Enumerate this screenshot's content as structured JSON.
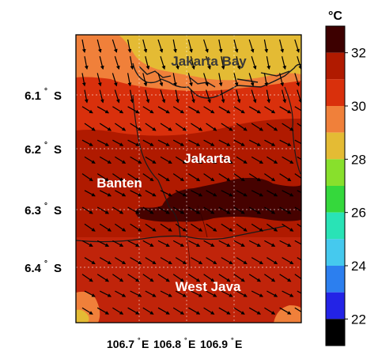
{
  "map": {
    "bay_label": "Jakarta Bay",
    "region_labels": [
      "Jakarta",
      "Banten",
      "West Java"
    ],
    "lat_labels": [
      "6.1",
      "6.2",
      "6.3",
      "6.4"
    ],
    "lat_suffix": "S",
    "lon_labels": [
      "106.7",
      "106.8",
      "106.9"
    ],
    "lon_suffix": "E",
    "degree_symbol": "°"
  },
  "colorbar": {
    "unit": "°C",
    "tick_labels": [
      "32",
      "30",
      "28",
      "26",
      "24",
      "22"
    ],
    "ticks": [
      32,
      30,
      28,
      26,
      24,
      22
    ],
    "range": [
      21,
      33
    ],
    "bands": [
      {
        "from": 32,
        "to": 33,
        "color": "#3d0000"
      },
      {
        "from": 31,
        "to": 32,
        "color": "#b01a00"
      },
      {
        "from": 30,
        "to": 31,
        "color": "#d9300c"
      },
      {
        "from": 29,
        "to": 30,
        "color": "#f0803a"
      },
      {
        "from": 28,
        "to": 29,
        "color": "#e4bb34"
      },
      {
        "from": 27,
        "to": 28,
        "color": "#88e02c"
      },
      {
        "from": 26,
        "to": 27,
        "color": "#35d83c"
      },
      {
        "from": 25,
        "to": 26,
        "color": "#29e3b6"
      },
      {
        "from": 24,
        "to": 25,
        "color": "#45c9ee"
      },
      {
        "from": 23,
        "to": 24,
        "color": "#2c7fef"
      },
      {
        "from": 22,
        "to": 23,
        "color": "#2323e6"
      },
      {
        "from": 21,
        "to": 22,
        "color": "#000000"
      }
    ]
  },
  "colors": {
    "bay": "#e4bb34",
    "coastal": "#f0803a",
    "mid": "#d9300c",
    "hot": "#b01a00",
    "hottest": "#3d0000",
    "coast_fill": "#cf3a14",
    "region_text": "#ffffff",
    "bay_text": "#3a3a3a"
  },
  "vectors": {
    "nominal_direction": "toward south-southeast",
    "nominal_grid": "15 columns by 17 rows"
  }
}
